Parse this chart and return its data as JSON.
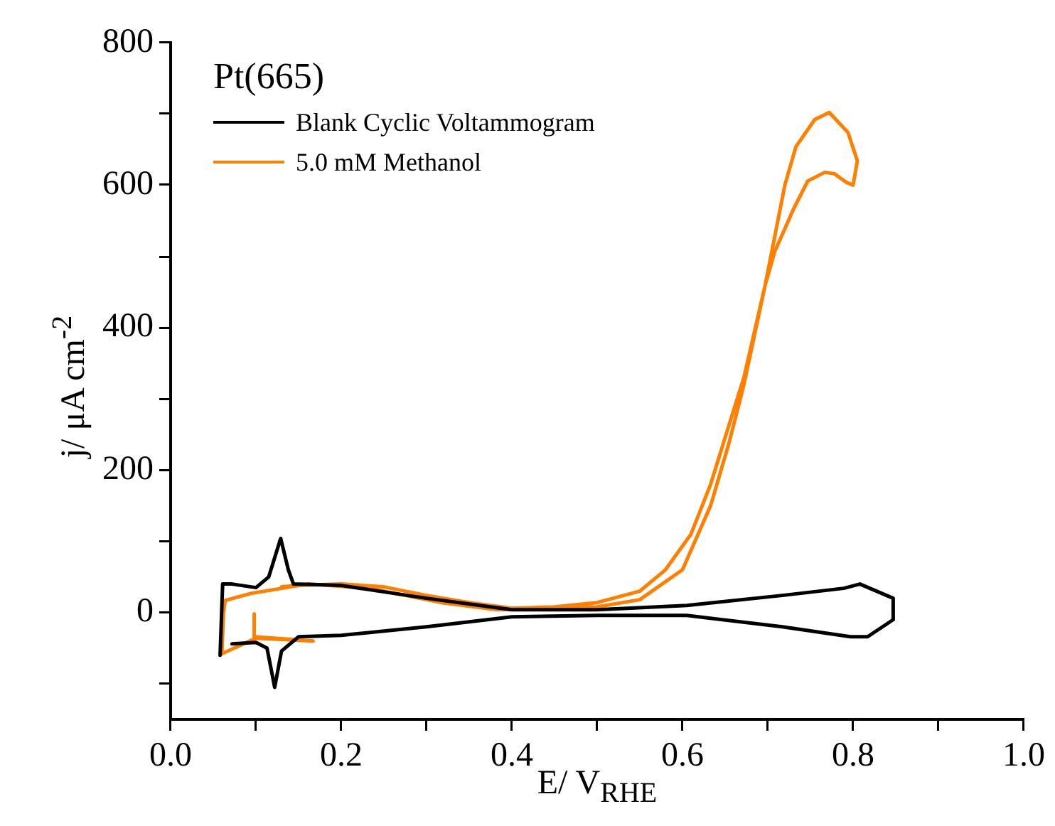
{
  "chart_data": {
    "type": "line",
    "xlabel": "E/ V$_{RHE}$",
    "ylabel": "j/ μA cm$^{-2}$",
    "annotations": [
      "Pt(665)"
    ],
    "legend": "top left",
    "marker": "none",
    "line_style": "solid",
    "xlim": [
      0,
      1
    ],
    "xticks": [
      {
        "value": 0,
        "label": "0.0"
      },
      {
        "value": 0.1,
        "label": null
      },
      0.2,
      {
        "value": 0.3,
        "label": null
      },
      0.4,
      {
        "value": 0.5,
        "label": null
      },
      0.6,
      {
        "value": 0.7,
        "label": null
      },
      0.8,
      {
        "value": 0.9,
        "label": null
      },
      {
        "value": 1,
        "label": "1.0"
      }
    ],
    "ylim": [
      -150,
      800
    ],
    "yticks": [
      {
        "value": -100,
        "label": null
      },
      0,
      {
        "value": 100,
        "label": null
      },
      200,
      {
        "value": 300,
        "label": null
      },
      400,
      {
        "value": 500,
        "label": null
      },
      600,
      {
        "value": 700,
        "label": null
      },
      800
    ],
    "series": [
      {
        "name": "Blank Cyclic Voltammogram",
        "color": "#000000",
        "x": [
          0.058,
          0.061,
          0.072,
          0.1,
          0.115,
          0.129,
          0.138,
          0.144,
          0.2,
          0.3,
          0.4,
          0.5,
          0.605,
          0.717,
          0.789,
          0.808,
          0.847,
          0.847,
          0.817,
          0.797,
          0.717,
          0.605,
          0.5,
          0.4,
          0.3,
          0.2,
          0.15,
          0.13,
          0.122,
          0.113,
          0.1,
          0.072
        ],
        "values": [
          -60,
          40,
          40,
          35,
          50,
          104,
          60,
          40,
          38,
          20,
          4,
          4,
          10,
          24,
          34,
          40,
          20,
          -10,
          -34,
          -34,
          -20,
          -4,
          -4,
          -6,
          -20,
          -32,
          -34,
          -54,
          -105,
          -50,
          -42,
          -44
        ]
      },
      {
        "name": "5.0 mM Methanol",
        "color": "#ff8000",
        "x": [
          0.098,
          0.098,
          0.167,
          0.1,
          0.06,
          0.062,
          0.064,
          0.095,
          0.161,
          0.233,
          0.317,
          0.383,
          0.45,
          0.5,
          0.55,
          0.6,
          0.633,
          0.655,
          0.672,
          0.697,
          0.72,
          0.733,
          0.755,
          0.772,
          0.794,
          0.805,
          0.8,
          0.792,
          0.778,
          0.767,
          0.747,
          0.73,
          0.708,
          0.697,
          0.672,
          0.655,
          0.633,
          0.61,
          0.58,
          0.55,
          0.5,
          0.45,
          0.4,
          0.35,
          0.3,
          0.25,
          0.2,
          0.15,
          0.13
        ],
        "values": [
          -2,
          -34,
          -40,
          -36,
          -58,
          0,
          17,
          27,
          40,
          34,
          14,
          4,
          6,
          8,
          18,
          60,
          150,
          240,
          320,
          460,
          600,
          654,
          692,
          702,
          674,
          634,
          600,
          604,
          616,
          618,
          606,
          566,
          506,
          460,
          330,
          265,
          180,
          110,
          60,
          30,
          14,
          8,
          6,
          14,
          24,
          36,
          40,
          38,
          36
        ]
      }
    ]
  }
}
